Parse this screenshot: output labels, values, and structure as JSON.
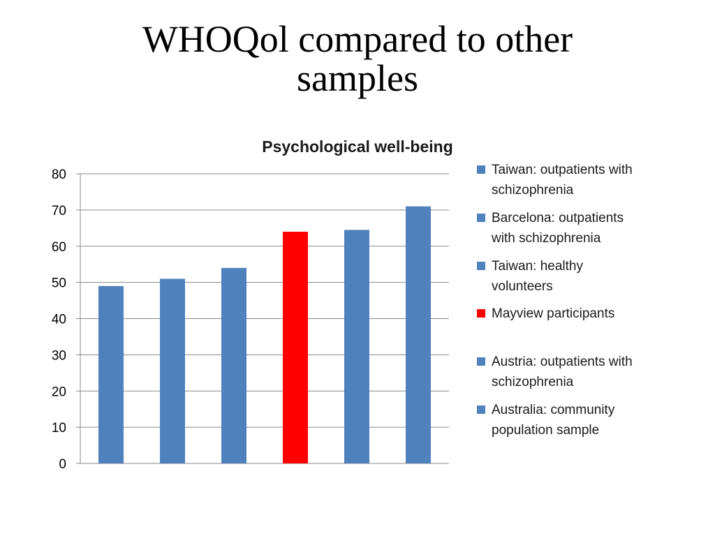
{
  "slide": {
    "title_line1": "WHOQol compared to other",
    "title_line2": "samples"
  },
  "chart_data": {
    "type": "bar",
    "title": "Psychological well-being",
    "xlabel": "",
    "ylabel": "",
    "ylim": [
      0,
      80
    ],
    "yticks": [
      0,
      10,
      20,
      30,
      40,
      50,
      60,
      70,
      80
    ],
    "grid": true,
    "legend_position": "right",
    "series": [
      {
        "name": "Taiwan: outpatients with schizophrenia",
        "legend_lines": [
          "Taiwan: outpatients with",
          "schizophrenia"
        ],
        "value": 49,
        "color": "#4F81BD"
      },
      {
        "name": "Barcelona: outpatients with schizophrenia",
        "legend_lines": [
          "Barcelona: outpatients",
          "with schizophrenia"
        ],
        "value": 51,
        "color": "#4F81BD"
      },
      {
        "name": "Taiwan: healthy volunteers",
        "legend_lines": [
          "Taiwan: healthy",
          "volunteers"
        ],
        "value": 54,
        "color": "#4F81BD"
      },
      {
        "name": "Mayview participants",
        "legend_lines": [
          "Mayview participants"
        ],
        "value": 64,
        "color": "#FF0000"
      },
      {
        "name": "Austria: outpatients with schizophrenia",
        "legend_lines": [
          "Austria: outpatients with",
          "schizophrenia"
        ],
        "value": 64.5,
        "color": "#4F81BD"
      },
      {
        "name": "Australia: community population sample",
        "legend_lines": [
          "Australia: community",
          "population sample"
        ],
        "value": 71,
        "color": "#4F81BD"
      }
    ]
  }
}
